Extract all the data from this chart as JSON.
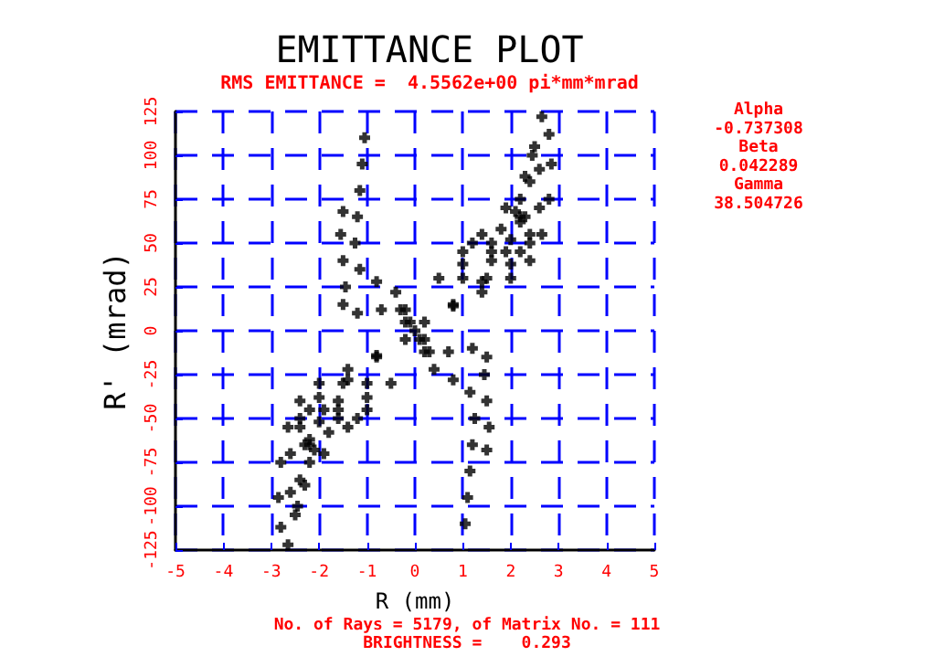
{
  "chart_data": {
    "type": "scatter",
    "title": "EMITTANCE PLOT",
    "subtitle": "RMS EMITTANCE =  4.5562e+00 pi*mm*mrad",
    "xlabel": "R (mm)",
    "ylabel": "R' (mrad)",
    "annotations": [
      "Alpha",
      "-0.737308",
      "Beta",
      "0.042289",
      "Gamma",
      "38.504726",
      "No. of Rays = 5179, of Matrix No. = 111",
      "BRIGHTNESS =    0.293"
    ],
    "xlim": [
      -5,
      5
    ],
    "xticks": [
      -5,
      -4,
      -3,
      -2,
      -1,
      0,
      1,
      2,
      3,
      4,
      5
    ],
    "ylim": [
      -125,
      125
    ],
    "yticks": [
      -125,
      -100,
      -75,
      -50,
      -25,
      0,
      25,
      50,
      75,
      100,
      125
    ],
    "grid": true,
    "marker": "cross",
    "series": [
      {
        "color": "#000000",
        "x": [
          0.2,
          0.8,
          1.4,
          1.9,
          2.2,
          2.4,
          2.5,
          2.65,
          2.8,
          2.85,
          2.8,
          2.65,
          2.4,
          2.0,
          1.4,
          0.8,
          1.0,
          1.6,
          2.1,
          2.3,
          2.45,
          2.6,
          2.6,
          2.4,
          2.0,
          1.5,
          0.5,
          1.2,
          1.8,
          2.2,
          2.4,
          2.2,
          1.6,
          1.0,
          1.0,
          1.4,
          1.9,
          2.2,
          2.3,
          2.0,
          1.6,
          -1.05,
          -1.1,
          -1.15,
          -1.2,
          -1.25,
          -1.15,
          -0.8,
          -0.4,
          -0.2,
          -0.1,
          0,
          -1.5,
          -1.55,
          -1.5,
          -1.45,
          -1.5,
          -1.2,
          -0.7,
          -0.3,
          -0.2,
          -0.2,
          -0.8,
          -1.4,
          -1.9,
          -2.2,
          -2.4,
          -2.5,
          -2.65,
          -2.8,
          -2.85,
          -2.8,
          -2.65,
          -2.4,
          -2.0,
          -1.4,
          -0.8,
          -1.0,
          -1.6,
          -2.1,
          -2.3,
          -2.45,
          -2.6,
          -2.6,
          -2.4,
          -2.0,
          -1.5,
          -0.5,
          -1.2,
          -1.8,
          -2.2,
          -2.4,
          -2.2,
          -1.6,
          -1.0,
          -1.0,
          -1.4,
          -1.9,
          -2.2,
          -2.3,
          -2.0,
          -1.6,
          1.05,
          1.1,
          1.15,
          1.2,
          1.25,
          1.15,
          0.8,
          0.4,
          0.2,
          0.1,
          1.5,
          1.55,
          1.5,
          1.45,
          1.5,
          1.2,
          0.7,
          0.3,
          0.2
        ],
        "values": [
          5,
          15,
          28,
          45,
          65,
          85,
          105,
          122,
          112,
          95,
          75,
          55,
          40,
          30,
          22,
          14,
          30,
          45,
          68,
          88,
          100,
          92,
          70,
          50,
          38,
          30,
          30,
          50,
          58,
          62,
          55,
          45,
          40,
          38,
          45,
          55,
          70,
          75,
          65,
          52,
          50,
          110,
          95,
          80,
          65,
          50,
          35,
          28,
          22,
          12,
          5,
          0,
          68,
          55,
          40,
          25,
          15,
          10,
          12,
          12,
          5,
          -5,
          -15,
          -28,
          -45,
          -65,
          -85,
          -105,
          -122,
          -112,
          -95,
          -75,
          -55,
          -40,
          -30,
          -22,
          -14,
          -30,
          -45,
          -68,
          -88,
          -100,
          -92,
          -70,
          -50,
          -38,
          -30,
          -30,
          -50,
          -58,
          -62,
          -55,
          -45,
          -40,
          -38,
          -45,
          -55,
          -70,
          -75,
          -65,
          -52,
          -50,
          -110,
          -95,
          -80,
          -65,
          -50,
          -35,
          -28,
          -22,
          -12,
          -5,
          -68,
          -55,
          -40,
          -25,
          -15,
          -10,
          -12,
          -12,
          -5
        ]
      }
    ]
  }
}
